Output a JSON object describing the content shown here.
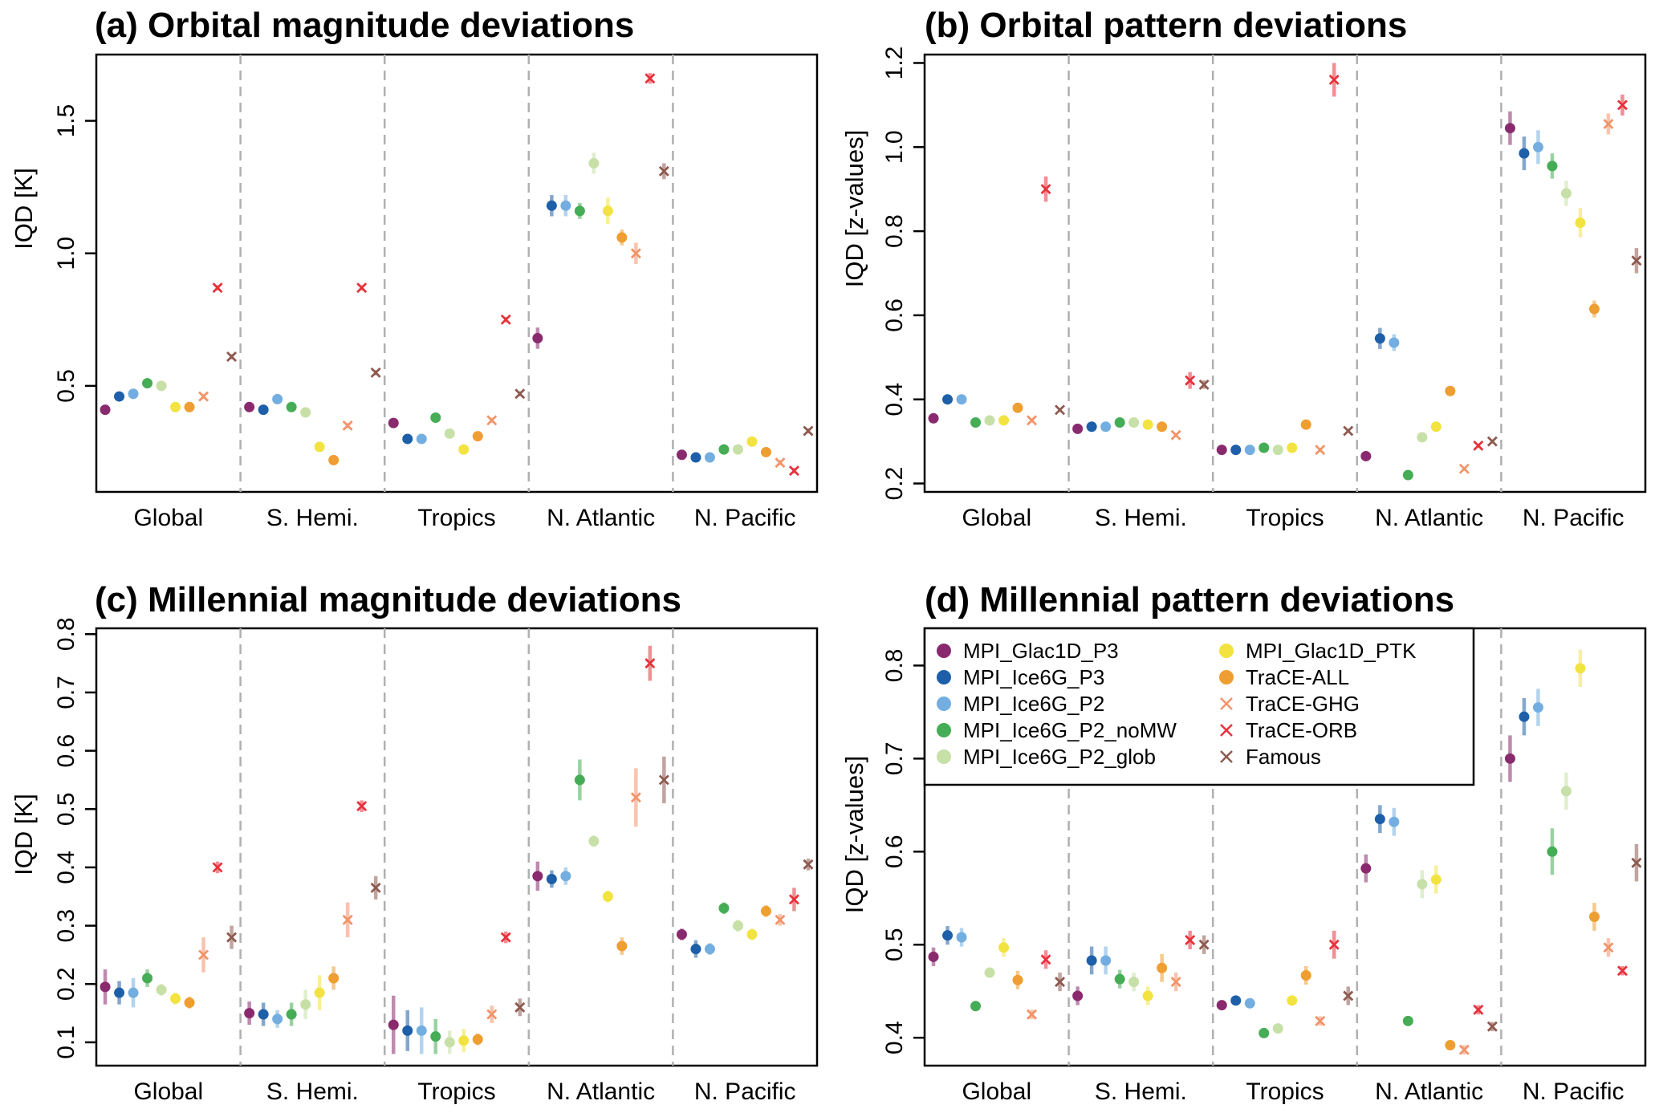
{
  "colors": {
    "MPI_Glac1D_P3": "#8a2a6e",
    "MPI_Ice6G_P3": "#1d5fa8",
    "MPI_Ice6G_P2": "#74aee0",
    "MPI_Ice6G_P2_noMW": "#45ad55",
    "MPI_Ice6G_P2_glob": "#c6e0a8",
    "MPI_Glac1D_PTK": "#f2e341",
    "TraCE-ALL": "#ef9e31",
    "TraCE-GHG": "#f2946a",
    "TraCE-ORB": "#e7323c",
    "Famous": "#8e5a50"
  },
  "legend": {
    "entries": [
      {
        "label": "MPI_Glac1D_P3",
        "marker": "dot",
        "color": "#8a2a6e"
      },
      {
        "label": "MPI_Ice6G_P3",
        "marker": "dot",
        "color": "#1d5fa8"
      },
      {
        "label": "MPI_Ice6G_P2",
        "marker": "dot",
        "color": "#74aee0"
      },
      {
        "label": "MPI_Ice6G_P2_noMW",
        "marker": "dot",
        "color": "#45ad55"
      },
      {
        "label": "MPI_Ice6G_P2_glob",
        "marker": "dot",
        "color": "#c6e0a8"
      },
      {
        "label": "MPI_Glac1D_PTK",
        "marker": "dot",
        "color": "#f2e341"
      },
      {
        "label": "TraCE-ALL",
        "marker": "dot",
        "color": "#ef9e31"
      },
      {
        "label": "TraCE-GHG",
        "marker": "cross",
        "color": "#f2946a"
      },
      {
        "label": "TraCE-ORB",
        "marker": "cross",
        "color": "#e7323c"
      },
      {
        "label": "Famous",
        "marker": "cross",
        "color": "#8e5a50"
      }
    ]
  },
  "chart_data": [
    {
      "type": "scatter",
      "title": "(a) Orbital magnitude deviations",
      "ylabel": "IQD [K]",
      "categories": [
        "Global",
        "S. Hemi.",
        "Tropics",
        "N. Atlantic",
        "N. Pacific"
      ],
      "ylim": [
        0.1,
        1.75
      ],
      "yticks": [
        0.5,
        1.0,
        1.5
      ],
      "ytick_labels": [
        "0.5",
        "1.0",
        "1.5"
      ],
      "series": [
        {
          "name": "MPI_Glac1D_P3",
          "values": [
            0.41,
            0.42,
            0.36,
            0.68,
            0.24
          ],
          "err": [
            0.01,
            0.01,
            0.01,
            0.04,
            0.01
          ]
        },
        {
          "name": "MPI_Ice6G_P3",
          "values": [
            0.46,
            0.41,
            0.3,
            1.18,
            0.23
          ],
          "err": [
            0.01,
            0.01,
            0.01,
            0.04,
            0.01
          ]
        },
        {
          "name": "MPI_Ice6G_P2",
          "values": [
            0.47,
            0.45,
            0.3,
            1.18,
            0.23
          ],
          "err": [
            0.01,
            0.01,
            0.01,
            0.04,
            0.01
          ]
        },
        {
          "name": "MPI_Ice6G_P2_noMW",
          "values": [
            0.51,
            0.42,
            0.38,
            1.16,
            0.26
          ],
          "err": [
            0.01,
            0.01,
            0.01,
            0.03,
            0.01
          ]
        },
        {
          "name": "MPI_Ice6G_P2_glob",
          "values": [
            0.5,
            0.4,
            0.32,
            1.34,
            0.26
          ],
          "err": [
            0.01,
            0.01,
            0.01,
            0.04,
            0.01
          ]
        },
        {
          "name": "MPI_Glac1D_PTK",
          "values": [
            0.42,
            0.27,
            0.26,
            1.16,
            0.29
          ],
          "err": [
            0.01,
            0.01,
            0.01,
            0.05,
            0.01
          ]
        },
        {
          "name": "TraCE-ALL",
          "values": [
            0.42,
            0.22,
            0.31,
            1.06,
            0.25
          ],
          "err": [
            0.01,
            0.01,
            0.01,
            0.03,
            0.01
          ]
        },
        {
          "name": "TraCE-GHG",
          "values": [
            0.46,
            0.35,
            0.37,
            1.0,
            0.21
          ],
          "err": [
            0.01,
            0.01,
            0.01,
            0.04,
            0.01
          ]
        },
        {
          "name": "TraCE-ORB",
          "values": [
            0.87,
            0.87,
            0.75,
            1.66,
            0.18
          ],
          "err": [
            0.01,
            0.01,
            0.01,
            0.02,
            0.01
          ]
        },
        {
          "name": "Famous",
          "values": [
            0.61,
            0.55,
            0.47,
            1.31,
            0.33
          ],
          "err": [
            0.01,
            0.01,
            0.01,
            0.03,
            0.01
          ]
        }
      ]
    },
    {
      "type": "scatter",
      "title": "(b) Orbital pattern deviations",
      "ylabel": "IQD [z-values]",
      "categories": [
        "Global",
        "S. Hemi.",
        "Tropics",
        "N. Atlantic",
        "N. Pacific"
      ],
      "ylim": [
        0.18,
        1.22
      ],
      "yticks": [
        0.2,
        0.4,
        0.6,
        0.8,
        1.0,
        1.2
      ],
      "ytick_labels": [
        "0.2",
        "0.4",
        "0.6",
        "0.8",
        "1.0",
        "1.2"
      ],
      "series": [
        {
          "name": "MPI_Glac1D_P3",
          "values": [
            0.355,
            0.33,
            0.28,
            0.265,
            1.045
          ],
          "err": [
            0.005,
            0.005,
            0.005,
            0.005,
            0.04
          ]
        },
        {
          "name": "MPI_Ice6G_P3",
          "values": [
            0.4,
            0.335,
            0.28,
            0.545,
            0.985
          ],
          "err": [
            0.01,
            0.005,
            0.005,
            0.025,
            0.04
          ]
        },
        {
          "name": "MPI_Ice6G_P2",
          "values": [
            0.4,
            0.335,
            0.28,
            0.535,
            1.0
          ],
          "err": [
            0.01,
            0.005,
            0.005,
            0.02,
            0.04
          ]
        },
        {
          "name": "MPI_Ice6G_P2_noMW",
          "values": [
            0.345,
            0.345,
            0.285,
            0.22,
            0.955
          ],
          "err": [
            0.005,
            0.005,
            0.005,
            0.005,
            0.03
          ]
        },
        {
          "name": "MPI_Ice6G_P2_glob",
          "values": [
            0.35,
            0.345,
            0.28,
            0.31,
            0.89
          ],
          "err": [
            0.005,
            0.005,
            0.005,
            0.005,
            0.03
          ]
        },
        {
          "name": "MPI_Glac1D_PTK",
          "values": [
            0.35,
            0.34,
            0.285,
            0.335,
            0.82
          ],
          "err": [
            0.005,
            0.005,
            0.005,
            0.005,
            0.035
          ]
        },
        {
          "name": "TraCE-ALL",
          "values": [
            0.38,
            0.335,
            0.34,
            0.42,
            0.615
          ],
          "err": [
            0.005,
            0.005,
            0.005,
            0.005,
            0.02
          ]
        },
        {
          "name": "TraCE-GHG",
          "values": [
            0.35,
            0.315,
            0.28,
            0.235,
            1.055
          ],
          "err": [
            0.005,
            0.005,
            0.005,
            0.005,
            0.025
          ]
        },
        {
          "name": "TraCE-ORB",
          "values": [
            0.9,
            0.445,
            1.16,
            0.29,
            1.1
          ],
          "err": [
            0.03,
            0.02,
            0.04,
            0.005,
            0.025
          ]
        },
        {
          "name": "Famous",
          "values": [
            0.375,
            0.435,
            0.325,
            0.3,
            0.73
          ],
          "err": [
            0.005,
            0.01,
            0.005,
            0.005,
            0.03
          ]
        }
      ]
    },
    {
      "type": "scatter",
      "title": "(c) Millennial magnitude deviations",
      "ylabel": "IQD [K]",
      "categories": [
        "Global",
        "S. Hemi.",
        "Tropics",
        "N. Atlantic",
        "N. Pacific"
      ],
      "ylim": [
        0.06,
        0.81
      ],
      "yticks": [
        0.1,
        0.2,
        0.3,
        0.4,
        0.5,
        0.6,
        0.7,
        0.8
      ],
      "ytick_labels": [
        "0.1",
        "0.2",
        "0.3",
        "0.4",
        "0.5",
        "0.6",
        "0.7",
        "0.8"
      ],
      "series": [
        {
          "name": "MPI_Glac1D_P3",
          "values": [
            0.195,
            0.15,
            0.13,
            0.385,
            0.285
          ],
          "err": [
            0.03,
            0.02,
            0.05,
            0.025,
            0.01
          ]
        },
        {
          "name": "MPI_Ice6G_P3",
          "values": [
            0.185,
            0.148,
            0.12,
            0.38,
            0.26
          ],
          "err": [
            0.02,
            0.02,
            0.035,
            0.015,
            0.015
          ]
        },
        {
          "name": "MPI_Ice6G_P2",
          "values": [
            0.185,
            0.14,
            0.12,
            0.385,
            0.26
          ],
          "err": [
            0.025,
            0.015,
            0.04,
            0.015,
            0.01
          ]
        },
        {
          "name": "MPI_Ice6G_P2_noMW",
          "values": [
            0.21,
            0.148,
            0.11,
            0.55,
            0.33
          ],
          "err": [
            0.015,
            0.02,
            0.03,
            0.035,
            0.01
          ]
        },
        {
          "name": "MPI_Ice6G_P2_glob",
          "values": [
            0.19,
            0.165,
            0.1,
            0.445,
            0.3
          ],
          "err": [
            0.01,
            0.025,
            0.02,
            0.01,
            0.01
          ]
        },
        {
          "name": "MPI_Glac1D_PTK",
          "values": [
            0.175,
            0.185,
            0.103,
            0.35,
            0.285
          ],
          "err": [
            0.01,
            0.03,
            0.02,
            0.01,
            0.01
          ]
        },
        {
          "name": "TraCE-ALL",
          "values": [
            0.168,
            0.21,
            0.105,
            0.265,
            0.325
          ],
          "err": [
            0.01,
            0.02,
            0.01,
            0.015,
            0.01
          ]
        },
        {
          "name": "TraCE-GHG",
          "values": [
            0.25,
            0.31,
            0.148,
            0.52,
            0.31
          ],
          "err": [
            0.03,
            0.03,
            0.015,
            0.05,
            0.01
          ]
        },
        {
          "name": "TraCE-ORB",
          "values": [
            0.4,
            0.505,
            0.28,
            0.75,
            0.345
          ],
          "err": [
            0.01,
            0.01,
            0.01,
            0.03,
            0.02
          ]
        },
        {
          "name": "Famous",
          "values": [
            0.28,
            0.365,
            0.16,
            0.55,
            0.405
          ],
          "err": [
            0.02,
            0.02,
            0.015,
            0.04,
            0.01
          ]
        }
      ]
    },
    {
      "type": "scatter",
      "title": "(d) Millennial pattern deviations",
      "ylabel": "IQD [z-values]",
      "categories": [
        "Global",
        "S. Hemi.",
        "Tropics",
        "N. Atlantic",
        "N. Pacific"
      ],
      "ylim": [
        0.37,
        0.84
      ],
      "yticks": [
        0.4,
        0.5,
        0.6,
        0.7,
        0.8
      ],
      "ytick_labels": [
        "0.4",
        "0.5",
        "0.6",
        "0.7",
        "0.8"
      ],
      "series": [
        {
          "name": "MPI_Glac1D_P3",
          "values": [
            0.487,
            0.445,
            0.435,
            0.582,
            0.7
          ],
          "err": [
            0.01,
            0.01,
            0.005,
            0.015,
            0.025
          ]
        },
        {
          "name": "MPI_Ice6G_P3",
          "values": [
            0.51,
            0.483,
            0.44,
            0.635,
            0.745
          ],
          "err": [
            0.01,
            0.015,
            0.005,
            0.015,
            0.02
          ]
        },
        {
          "name": "MPI_Ice6G_P2",
          "values": [
            0.508,
            0.483,
            0.437,
            0.632,
            0.755
          ],
          "err": [
            0.01,
            0.015,
            0.005,
            0.015,
            0.02
          ]
        },
        {
          "name": "MPI_Ice6G_P2_noMW",
          "values": [
            0.434,
            0.463,
            0.405,
            0.418,
            0.6
          ],
          "err": [
            0.005,
            0.01,
            0.005,
            0.005,
            0.025
          ]
        },
        {
          "name": "MPI_Ice6G_P2_glob",
          "values": [
            0.47,
            0.46,
            0.41,
            0.565,
            0.665
          ],
          "err": [
            0.005,
            0.01,
            0.005,
            0.015,
            0.02
          ]
        },
        {
          "name": "MPI_Glac1D_PTK",
          "values": [
            0.497,
            0.445,
            0.44,
            0.57,
            0.797
          ],
          "err": [
            0.01,
            0.01,
            0.005,
            0.015,
            0.02
          ]
        },
        {
          "name": "TraCE-ALL",
          "values": [
            0.462,
            0.475,
            0.467,
            0.392,
            0.53
          ],
          "err": [
            0.01,
            0.015,
            0.01,
            0.005,
            0.015
          ]
        },
        {
          "name": "TraCE-GHG",
          "values": [
            0.425,
            0.46,
            0.418,
            0.387,
            0.497
          ],
          "err": [
            0.005,
            0.01,
            0.005,
            0.005,
            0.01
          ]
        },
        {
          "name": "TraCE-ORB",
          "values": [
            0.484,
            0.505,
            0.5,
            0.43,
            0.472
          ],
          "err": [
            0.01,
            0.01,
            0.015,
            0.005,
            0.005
          ]
        },
        {
          "name": "Famous",
          "values": [
            0.46,
            0.5,
            0.445,
            0.412,
            0.588
          ],
          "err": [
            0.01,
            0.01,
            0.01,
            0.005,
            0.02
          ]
        }
      ]
    }
  ]
}
